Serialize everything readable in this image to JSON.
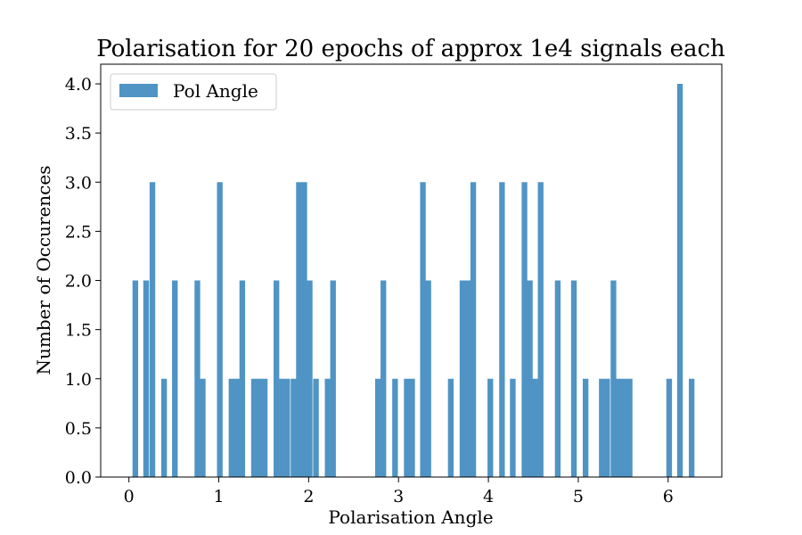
{
  "chart_data": {
    "type": "bar",
    "title": "Polarisation for 20 epochs of approx 1e4 signals each",
    "xlabel": "Polarisation Angle",
    "ylabel": "Number of Occurences",
    "xlim": [
      -0.314,
      6.597
    ],
    "ylim": [
      0,
      4.2
    ],
    "bin_width": 0.0628,
    "x_ticks": [
      0,
      1,
      2,
      3,
      4,
      5,
      6
    ],
    "x_tick_labels": [
      "0",
      "1",
      "2",
      "3",
      "4",
      "5",
      "6"
    ],
    "y_ticks": [
      0,
      0.5,
      1.0,
      1.5,
      2.0,
      2.5,
      3.0,
      3.5,
      4.0
    ],
    "y_tick_labels": [
      "0.0",
      "0.5",
      "1.0",
      "1.5",
      "2.0",
      "2.5",
      "3.0",
      "3.5",
      "4.0"
    ],
    "grid": false,
    "legend_position": "upper left",
    "series": [
      {
        "name": "Pol Angle",
        "color": "#4f94c4",
        "bin_starts": [
          0.04,
          0.16,
          0.23,
          0.36,
          0.48,
          0.73,
          0.79,
          0.98,
          1.11,
          1.17,
          1.23,
          1.36,
          1.42,
          1.48,
          1.61,
          1.67,
          1.73,
          1.8,
          1.86,
          1.92,
          1.98,
          2.05,
          2.18,
          2.24,
          2.74,
          2.8,
          2.93,
          3.06,
          3.12,
          3.24,
          3.3,
          3.55,
          3.68,
          3.74,
          3.8,
          3.99,
          4.12,
          4.24,
          4.37,
          4.43,
          4.49,
          4.55,
          4.74,
          4.92,
          5.05,
          5.23,
          5.29,
          5.36,
          5.42,
          5.48,
          5.54,
          5.98,
          6.1,
          6.23
        ],
        "values": [
          2,
          2,
          3,
          1,
          2,
          2,
          1,
          3,
          1,
          1,
          2,
          1,
          1,
          1,
          2,
          1,
          1,
          1,
          3,
          3,
          2,
          1,
          1,
          2,
          1,
          2,
          1,
          1,
          1,
          3,
          2,
          1,
          2,
          2,
          3,
          1,
          3,
          1,
          3,
          2,
          1,
          3,
          2,
          2,
          1,
          1,
          1,
          2,
          1,
          1,
          1,
          1,
          4,
          1
        ]
      }
    ]
  }
}
